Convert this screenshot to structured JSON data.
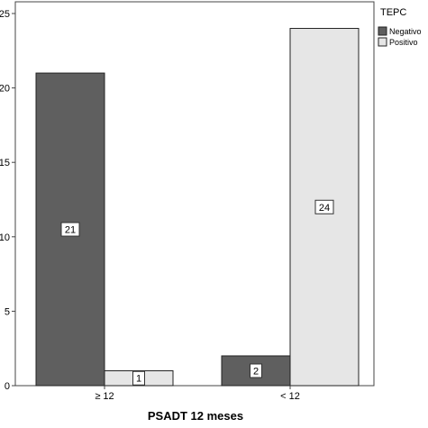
{
  "chart_data": {
    "type": "bar",
    "categories": [
      "≥ 12",
      "< 12"
    ],
    "series": [
      {
        "name": "Negativo",
        "values": [
          21,
          2
        ],
        "color": "#5f5f5f"
      },
      {
        "name": "Positivo",
        "values": [
          1,
          24
        ],
        "color": "#e6e6e6"
      }
    ],
    "xlabel": "PSADT 12 meses",
    "ylabel": "",
    "ylim": [
      0,
      25
    ],
    "yticks": [
      0,
      5,
      10,
      15,
      20,
      25
    ],
    "legend": {
      "title": "TEPC",
      "placement": "top-right"
    },
    "grid": false,
    "data_labels": true
  }
}
